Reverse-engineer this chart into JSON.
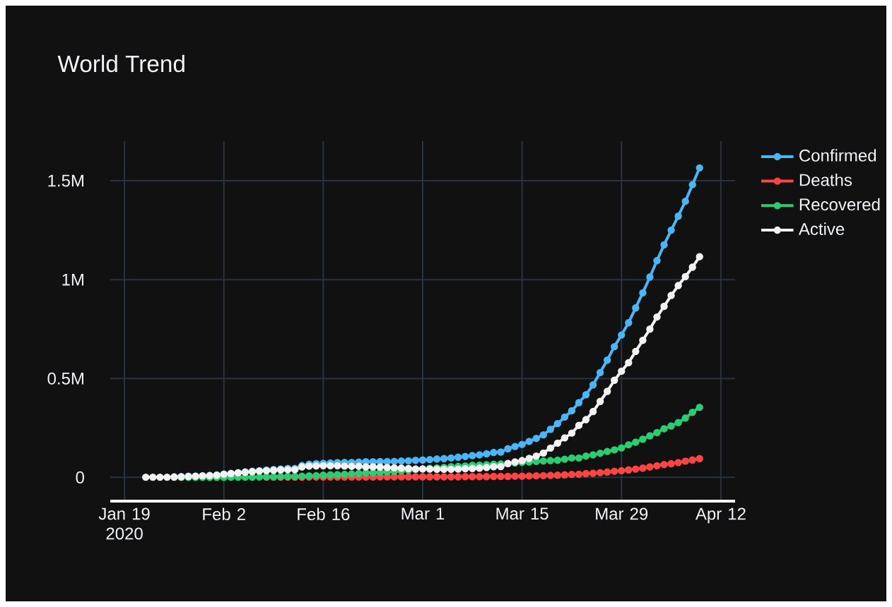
{
  "chart_data": {
    "type": "line",
    "title": "World Trend",
    "x": [
      "2020-01-22",
      "2020-01-23",
      "2020-01-24",
      "2020-01-25",
      "2020-01-26",
      "2020-01-27",
      "2020-01-28",
      "2020-01-29",
      "2020-01-30",
      "2020-01-31",
      "2020-02-01",
      "2020-02-02",
      "2020-02-03",
      "2020-02-04",
      "2020-02-05",
      "2020-02-06",
      "2020-02-07",
      "2020-02-08",
      "2020-02-09",
      "2020-02-10",
      "2020-02-11",
      "2020-02-12",
      "2020-02-13",
      "2020-02-14",
      "2020-02-15",
      "2020-02-16",
      "2020-02-17",
      "2020-02-18",
      "2020-02-19",
      "2020-02-20",
      "2020-02-21",
      "2020-02-22",
      "2020-02-23",
      "2020-02-24",
      "2020-02-25",
      "2020-02-26",
      "2020-02-27",
      "2020-02-28",
      "2020-02-29",
      "2020-03-01",
      "2020-03-02",
      "2020-03-03",
      "2020-03-04",
      "2020-03-05",
      "2020-03-06",
      "2020-03-07",
      "2020-03-08",
      "2020-03-09",
      "2020-03-10",
      "2020-03-11",
      "2020-03-12",
      "2020-03-13",
      "2020-03-14",
      "2020-03-15",
      "2020-03-16",
      "2020-03-17",
      "2020-03-18",
      "2020-03-19",
      "2020-03-20",
      "2020-03-21",
      "2020-03-22",
      "2020-03-23",
      "2020-03-24",
      "2020-03-25",
      "2020-03-26",
      "2020-03-27",
      "2020-03-28",
      "2020-03-29",
      "2020-03-30",
      "2020-03-31",
      "2020-04-01",
      "2020-04-02",
      "2020-04-03",
      "2020-04-04",
      "2020-04-05",
      "2020-04-06",
      "2020-04-07",
      "2020-04-08",
      "2020-04-09"
    ],
    "series": [
      {
        "name": "Confirmed",
        "color": "#4cb5f5",
        "values": [
          null,
          null,
          null,
          null,
          2000,
          3000,
          6000,
          6000,
          8000,
          10000,
          12000,
          17000,
          20000,
          24000,
          28000,
          31000,
          34000,
          37000,
          40000,
          43000,
          45000,
          45000,
          60000,
          67000,
          69000,
          71000,
          73000,
          75000,
          76000,
          76000,
          77000,
          79000,
          79000,
          80000,
          80000,
          81000,
          83000,
          84000,
          86000,
          88000,
          90000,
          93000,
          95000,
          98000,
          102000,
          106000,
          110000,
          114000,
          119000,
          126000,
          128000,
          145000,
          156000,
          167000,
          182000,
          197000,
          215000,
          243000,
          272000,
          305000,
          337000,
          378000,
          418000,
          468000,
          530000,
          593000,
          661000,
          720000,
          782000,
          857000,
          933000,
          1013000,
          1096000,
          1176000,
          1250000,
          1321000,
          1396000,
          1480000,
          1565000
        ]
      },
      {
        "name": "Deaths",
        "color": "#ff4444",
        "values": [
          null,
          null,
          null,
          null,
          null,
          null,
          null,
          null,
          null,
          null,
          null,
          null,
          null,
          null,
          null,
          null,
          null,
          1000,
          1000,
          1000,
          1000,
          1000,
          1000,
          2000,
          2000,
          2000,
          2000,
          2000,
          2000,
          2000,
          2000,
          2000,
          2000,
          3000,
          3000,
          3000,
          3000,
          3000,
          3000,
          3000,
          3000,
          3000,
          3000,
          3000,
          3000,
          4000,
          4000,
          4000,
          4000,
          5000,
          5000,
          5000,
          6000,
          6000,
          7000,
          8000,
          9000,
          10000,
          11000,
          13000,
          15000,
          16000,
          19000,
          21000,
          24000,
          27000,
          31000,
          34000,
          38000,
          42000,
          47000,
          53000,
          59000,
          65000,
          69000,
          75000,
          82000,
          88000,
          95000
        ]
      },
      {
        "name": "Recovered",
        "color": "#2ecc71",
        "values": [
          null,
          null,
          null,
          null,
          0,
          0,
          0,
          0,
          0,
          0,
          0,
          0,
          1000,
          1000,
          1000,
          1000,
          2000,
          3000,
          3000,
          4000,
          5000,
          5000,
          6000,
          8000,
          9000,
          11000,
          13000,
          14000,
          16000,
          18000,
          19000,
          23000,
          23000,
          25000,
          28000,
          30000,
          33000,
          37000,
          40000,
          43000,
          46000,
          48000,
          51000,
          54000,
          56000,
          58000,
          61000,
          62000,
          64000,
          67000,
          68000,
          70000,
          73000,
          76000,
          78000,
          81000,
          83000,
          85000,
          87000,
          92000,
          98000,
          98000,
          108000,
          114000,
          122000,
          131000,
          139000,
          149000,
          165000,
          178000,
          193000,
          210000,
          226000,
          246000,
          260000,
          277000,
          300000,
          329000,
          354000
        ]
      },
      {
        "name": "Active",
        "color": "#f2f2f2",
        "values": [
          1000,
          1000,
          1000,
          1000,
          2000,
          3000,
          5000,
          6000,
          8000,
          9000,
          11000,
          16000,
          19000,
          23000,
          26000,
          29000,
          32000,
          34000,
          36000,
          38000,
          39000,
          39000,
          53000,
          57000,
          58000,
          59000,
          59000,
          59000,
          57000,
          56000,
          56000,
          53000,
          53000,
          52000,
          50000,
          48000,
          47000,
          45000,
          43000,
          43000,
          42000,
          41000,
          41000,
          41000,
          42000,
          44000,
          45000,
          47000,
          50000,
          54000,
          55000,
          70000,
          78000,
          85000,
          96000,
          108000,
          123000,
          148000,
          173000,
          200000,
          224000,
          263000,
          292000,
          333000,
          384000,
          435000,
          491000,
          537000,
          580000,
          637000,
          693000,
          750000,
          811000,
          865000,
          920000,
          970000,
          1015000,
          1063000,
          1116000
        ]
      }
    ],
    "xlim": [
      "2020-01-17",
      "2020-04-14"
    ],
    "xticks": [
      {
        "value": "2020-01-19",
        "label": "Jan 19 2020"
      },
      {
        "value": "2020-02-02",
        "label": "Feb 2"
      },
      {
        "value": "2020-02-16",
        "label": "Feb 16"
      },
      {
        "value": "2020-03-01",
        "label": "Mar 1"
      },
      {
        "value": "2020-03-15",
        "label": "Mar 15"
      },
      {
        "value": "2020-03-29",
        "label": "Mar 29"
      },
      {
        "value": "2020-04-12",
        "label": "Apr 12"
      }
    ],
    "ylim": [
      -120000,
      1700000
    ],
    "yticks": [
      0,
      {
        "value": 500000,
        "label": "0.5M"
      },
      {
        "value": 1000000,
        "label": "1M"
      },
      {
        "value": 1500000,
        "label": "1.5M"
      }
    ],
    "grid": true,
    "legend": "right",
    "marker": "circle",
    "line_style": "solid"
  }
}
